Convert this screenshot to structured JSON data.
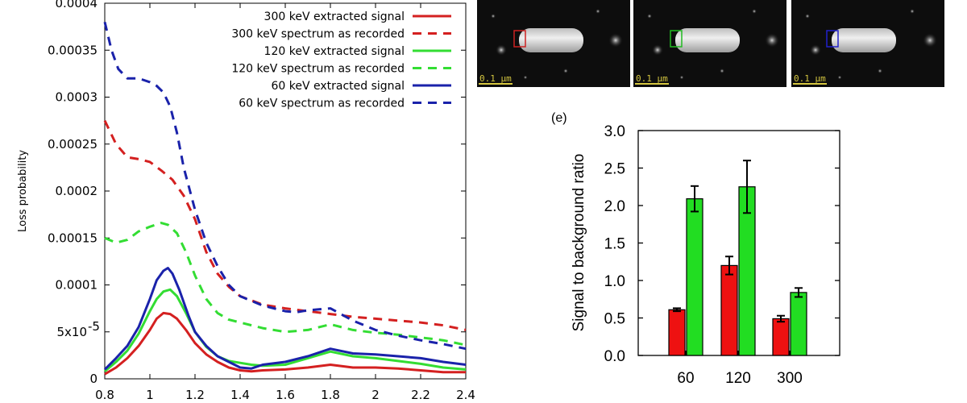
{
  "chart_data": [
    {
      "type": "line",
      "title": "",
      "xlabel": "",
      "ylabel": "Loss probability",
      "xlim": [
        0.8,
        2.4
      ],
      "ylim": [
        0,
        0.0004
      ],
      "x_ticks": [
        "0.8",
        "1",
        "1.2",
        "1.4",
        "1.6",
        "1.8",
        "2",
        "2.2",
        "2.4"
      ],
      "y_ticks": [
        "0",
        "5x10",
        "0.0001",
        "0.00015",
        "0.0002",
        "0.00025",
        "0.0003",
        "0.00035",
        "0.0004"
      ],
      "y_tick_exponent": "-5",
      "legend_position": "top-right",
      "grid": false,
      "series": [
        {
          "name": "300 keV extracted signal",
          "color": "#d42020",
          "style": "solid",
          "x": [
            0.8,
            0.85,
            0.9,
            0.95,
            1.0,
            1.03,
            1.06,
            1.09,
            1.12,
            1.16,
            1.2,
            1.25,
            1.3,
            1.35,
            1.4,
            1.45,
            1.5,
            1.6,
            1.7,
            1.8,
            1.9,
            2.0,
            2.1,
            2.2,
            2.3,
            2.4
          ],
          "y": [
            5e-06,
            1.2e-05,
            2.2e-05,
            3.5e-05,
            5.2e-05,
            6.4e-05,
            7e-05,
            6.9e-05,
            6.4e-05,
            5.2e-05,
            3.8e-05,
            2.6e-05,
            1.8e-05,
            1.2e-05,
            9e-06,
            8e-06,
            9e-06,
            1e-05,
            1.2e-05,
            1.5e-05,
            1.2e-05,
            1.2e-05,
            1.1e-05,
            9e-06,
            7e-06,
            7e-06
          ]
        },
        {
          "name": "300 keV spectrum as recorded",
          "color": "#d42020",
          "style": "dashed",
          "x": [
            0.8,
            0.85,
            0.9,
            0.95,
            1.0,
            1.05,
            1.1,
            1.15,
            1.2,
            1.25,
            1.3,
            1.35,
            1.4,
            1.5,
            1.6,
            1.7,
            1.8,
            1.9,
            2.0,
            2.1,
            2.2,
            2.3,
            2.4
          ],
          "y": [
            0.000275,
            0.00025,
            0.000236,
            0.000234,
            0.000231,
            0.000222,
            0.000212,
            0.000195,
            0.00017,
            0.000135,
            0.000112,
            9.8e-05,
            8.8e-05,
            7.9e-05,
            7.5e-05,
            7.2e-05,
            6.9e-05,
            6.6e-05,
            6.4e-05,
            6.2e-05,
            6e-05,
            5.7e-05,
            5.2e-05
          ]
        },
        {
          "name": "120 keV extracted signal",
          "color": "#33dd33",
          "style": "solid",
          "x": [
            0.8,
            0.85,
            0.9,
            0.95,
            1.0,
            1.03,
            1.06,
            1.09,
            1.12,
            1.16,
            1.2,
            1.25,
            1.3,
            1.35,
            1.4,
            1.45,
            1.5,
            1.6,
            1.7,
            1.8,
            1.9,
            2.0,
            2.1,
            2.2,
            2.3,
            2.4
          ],
          "y": [
            8e-06,
            1.8e-05,
            3e-05,
            4.8e-05,
            7.2e-05,
            8.5e-05,
            9.3e-05,
            9.5e-05,
            8.8e-05,
            7e-05,
            5e-05,
            3.4e-05,
            2.4e-05,
            1.9e-05,
            1.7e-05,
            1.5e-05,
            1.4e-05,
            1.5e-05,
            2.2e-05,
            2.9e-05,
            2.4e-05,
            2.2e-05,
            1.9e-05,
            1.6e-05,
            1.2e-05,
            1e-05
          ]
        },
        {
          "name": "120 keV spectrum as recorded",
          "color": "#33dd33",
          "style": "dashed",
          "x": [
            0.8,
            0.85,
            0.9,
            0.95,
            1.0,
            1.05,
            1.08,
            1.12,
            1.16,
            1.2,
            1.25,
            1.3,
            1.35,
            1.4,
            1.5,
            1.6,
            1.7,
            1.8,
            1.9,
            2.0,
            2.1,
            2.2,
            2.3,
            2.4
          ],
          "y": [
            0.00015,
            0.000145,
            0.000148,
            0.000157,
            0.000162,
            0.000166,
            0.000164,
            0.000155,
            0.000135,
            0.00011,
            8.5e-05,
            7e-05,
            6.3e-05,
            6e-05,
            5.4e-05,
            5e-05,
            5.2e-05,
            5.8e-05,
            5.2e-05,
            4.9e-05,
            4.7e-05,
            4.4e-05,
            4.1e-05,
            3.6e-05
          ]
        },
        {
          "name": "60 keV extracted signal",
          "color": "#1a22aa",
          "style": "solid",
          "x": [
            0.8,
            0.85,
            0.9,
            0.95,
            1.0,
            1.03,
            1.06,
            1.08,
            1.1,
            1.13,
            1.17,
            1.2,
            1.25,
            1.3,
            1.35,
            1.4,
            1.45,
            1.5,
            1.6,
            1.7,
            1.8,
            1.9,
            2.0,
            2.1,
            2.2,
            2.3,
            2.4
          ],
          "y": [
            1e-05,
            2.2e-05,
            3.5e-05,
            5.5e-05,
            8.5e-05,
            0.000105,
            0.000115,
            0.000118,
            0.000112,
            9.5e-05,
            6.8e-05,
            5e-05,
            3.5e-05,
            2.4e-05,
            1.8e-05,
            1.2e-05,
            1.1e-05,
            1.5e-05,
            1.8e-05,
            2.4e-05,
            3.2e-05,
            2.7e-05,
            2.6e-05,
            2.4e-05,
            2.2e-05,
            1.8e-05,
            1.5e-05
          ]
        },
        {
          "name": "60 keV spectrum as recorded",
          "color": "#1a22aa",
          "style": "dashed",
          "x": [
            0.8,
            0.83,
            0.86,
            0.9,
            0.95,
            1.0,
            1.03,
            1.06,
            1.09,
            1.12,
            1.15,
            1.2,
            1.25,
            1.3,
            1.35,
            1.4,
            1.5,
            1.6,
            1.65,
            1.7,
            1.8,
            1.9,
            2.0,
            2.1,
            2.2,
            2.3,
            2.4
          ],
          "y": [
            0.00038,
            0.00035,
            0.00033,
            0.00032,
            0.00032,
            0.000316,
            0.000312,
            0.000305,
            0.00029,
            0.000262,
            0.000225,
            0.00018,
            0.000145,
            0.00012,
            0.0001,
            8.8e-05,
            7.8e-05,
            7.2e-05,
            7.1e-05,
            7.3e-05,
            7.5e-05,
            6.2e-05,
            5.2e-05,
            4.6e-05,
            4.1e-05,
            3.7e-05,
            3.2e-05
          ]
        }
      ]
    },
    {
      "type": "bar",
      "panel_label": "(e)",
      "title": "",
      "xlabel": "",
      "ylabel": "Signal to background ratio",
      "categories": [
        "60",
        "120",
        "300"
      ],
      "ylim": [
        0,
        3.0
      ],
      "y_ticks": [
        "0.0",
        "0.5",
        "1.0",
        "1.5",
        "2.0",
        "2.5",
        "3.0"
      ],
      "grid": false,
      "series": [
        {
          "name": "",
          "color": "#ee1111",
          "values": [
            0.61,
            1.2,
            0.49
          ],
          "errors": [
            0.02,
            0.12,
            0.04
          ]
        },
        {
          "name": "",
          "color": "#22dd22",
          "values": [
            2.09,
            2.25,
            0.84
          ],
          "errors": [
            0.17,
            0.35,
            0.06
          ]
        }
      ]
    }
  ],
  "images": [
    {
      "scale_label": "0.1 µm",
      "box_color": "#cc2222"
    },
    {
      "scale_label": "0.1 µm",
      "box_color": "#22bb22"
    },
    {
      "scale_label": "0.1 µm",
      "box_color": "#2222cc"
    }
  ]
}
